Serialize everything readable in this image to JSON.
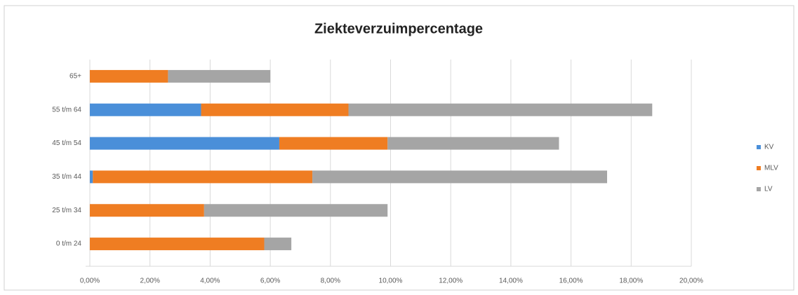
{
  "chart_data": {
    "type": "stacked-bar-horizontal",
    "title": "Ziekteverzuimpercentage",
    "categories": [
      "0 t/m 24",
      "25 t/m 34",
      "35 t/m 44",
      "45 t/m 54",
      "55 t/m 64",
      "65+"
    ],
    "series": [
      {
        "name": "KV",
        "color": "#4a8fd9",
        "values": [
          0,
          0,
          0.1,
          6.3,
          3.7,
          0
        ]
      },
      {
        "name": "MLV",
        "color": "#ef7d22",
        "values": [
          5.8,
          3.8,
          7.3,
          3.6,
          4.9,
          2.6
        ]
      },
      {
        "name": "LV",
        "color": "#a5a5a5",
        "values": [
          0.9,
          6.1,
          9.8,
          5.7,
          10.1,
          3.4
        ]
      }
    ],
    "xlim": [
      0,
      20
    ],
    "xticks": [
      {
        "value": 0,
        "label": "0,00%"
      },
      {
        "value": 2,
        "label": "2,00%"
      },
      {
        "value": 4,
        "label": "4,00%"
      },
      {
        "value": 6,
        "label": "6,00%"
      },
      {
        "value": 8,
        "label": "8,00%"
      },
      {
        "value": 10,
        "label": "10,00%"
      },
      {
        "value": 12,
        "label": "12,00%"
      },
      {
        "value": 14,
        "label": "14,00%"
      },
      {
        "value": 16,
        "label": "16,00%"
      },
      {
        "value": 18,
        "label": "18,00%"
      },
      {
        "value": 20,
        "label": "20,00%"
      }
    ],
    "grid": true,
    "legend": "right"
  }
}
